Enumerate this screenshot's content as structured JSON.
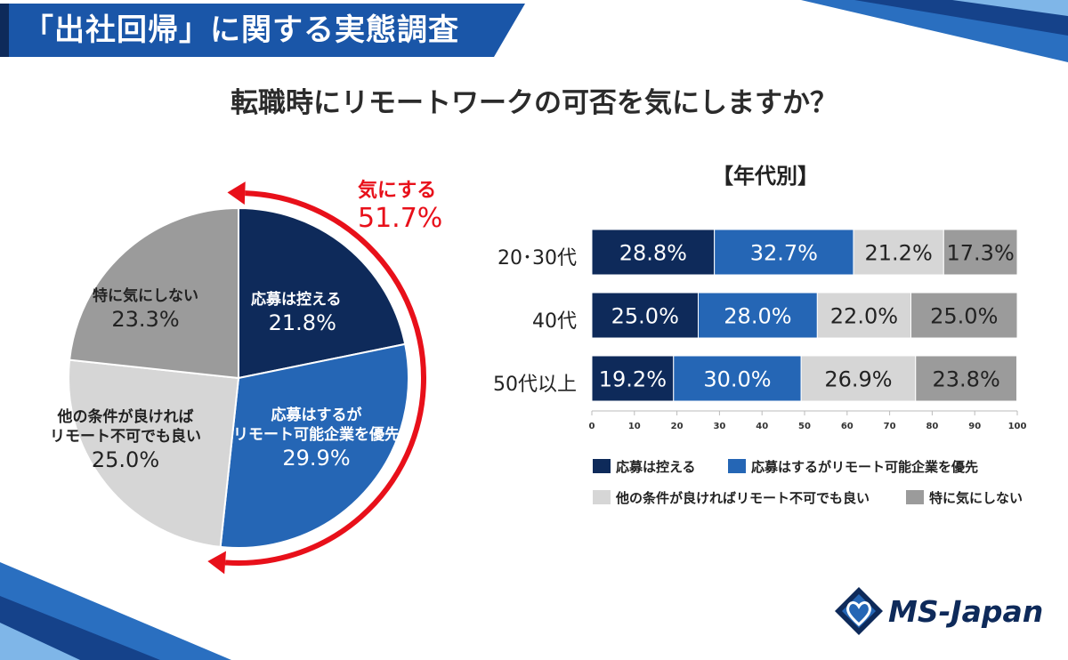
{
  "header": {
    "title": "「出社回帰」に関する実態調査"
  },
  "question": "転職時にリモートワークの可否を気にしますか？",
  "subtitle": "【年代別】",
  "colors": {
    "navy": "#0e2a5a",
    "blue": "#2566b5",
    "light_gray": "#d6d6d6",
    "gray": "#9b9b9b",
    "red": "#e8101a"
  },
  "pie": {
    "care_label": "気にする",
    "care_pct": "51.7%",
    "slices": [
      {
        "name": "応募は控える",
        "pct": "21.8%",
        "value": 21.8
      },
      {
        "name1": "応募はするが",
        "name2": "リモート可能企業を優先",
        "pct": "29.9%",
        "value": 29.9
      },
      {
        "name1": "他の条件が良ければ",
        "name2": "リモート不可でも良い",
        "pct": "25.0%",
        "value": 25.0
      },
      {
        "name": "特に気にしない",
        "pct": "23.3%",
        "value": 23.3
      }
    ]
  },
  "chart_data": [
    {
      "type": "pie",
      "title": "転職時にリモートワークの可否を気にしますか？",
      "labels": [
        "応募は控える",
        "応募はするがリモート可能企業を優先",
        "他の条件が良ければリモート不可でも良い",
        "特に気にしない"
      ],
      "values": [
        21.8,
        29.9,
        25.0,
        23.3
      ],
      "annotation": "気にする 51.7%"
    },
    {
      "type": "bar",
      "orientation": "horizontal-stacked",
      "title": "【年代別】",
      "categories": [
        "20･30代",
        "40代",
        "50代以上"
      ],
      "series": [
        {
          "name": "応募は控える",
          "values": [
            28.8,
            25.0,
            19.2
          ],
          "labels": [
            "28.8%",
            "25.0%",
            "19.2%"
          ]
        },
        {
          "name": "応募はするがリモート可能企業を優先",
          "values": [
            32.7,
            28.0,
            30.0
          ],
          "labels": [
            "32.7%",
            "28.0%",
            "30.0%"
          ]
        },
        {
          "name": "他の条件が良ければリモート不可でも良い",
          "values": [
            21.2,
            22.0,
            26.9
          ],
          "labels": [
            "21.2%",
            "22.0%",
            "26.9%"
          ]
        },
        {
          "name": "特に気にしない",
          "values": [
            17.3,
            25.0,
            23.8
          ],
          "labels": [
            "17.3%",
            "25.0%",
            "23.8%"
          ]
        }
      ],
      "xlim": [
        0,
        100
      ],
      "xticks": [
        "0",
        "10",
        "20",
        "30",
        "40",
        "50",
        "60",
        "70",
        "80",
        "90",
        "100"
      ]
    }
  ],
  "logo": {
    "text": "MS-Japan"
  }
}
